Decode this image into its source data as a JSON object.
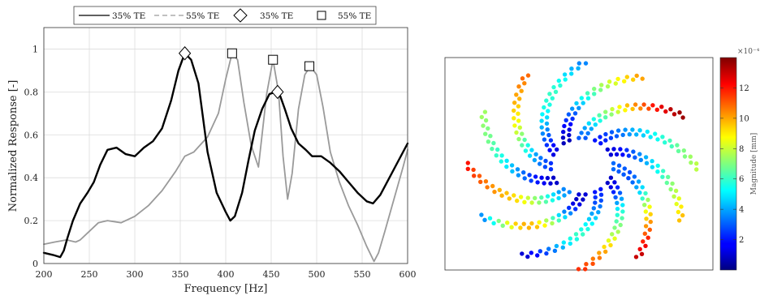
{
  "chart_data": [
    {
      "type": "line",
      "xlabel": "Frequency [Hz]",
      "ylabel": "Normalized Response [-]",
      "xlim": [
        200,
        600
      ],
      "ylim": [
        0,
        1.1
      ],
      "xticks": [
        200,
        250,
        300,
        350,
        400,
        450,
        500,
        550,
        600
      ],
      "yticks": [
        0,
        0.2,
        0.4,
        0.6,
        0.8,
        1
      ],
      "ytick_labels": [
        "0",
        "0.2",
        "0.4",
        "0.6",
        "0.8",
        "1"
      ],
      "grid": true,
      "legend_position": "top-outside",
      "legend": [
        {
          "label": "35% TE",
          "kind": "line-solid",
          "color": "#000000"
        },
        {
          "label": "55% TE",
          "kind": "line-dashed",
          "color": "#9a9a9a"
        },
        {
          "label": "35% TE",
          "kind": "diamond-marker",
          "color": "#000000"
        },
        {
          "label": "55% TE",
          "kind": "square-marker",
          "color": "#000000"
        }
      ],
      "series": [
        {
          "name": "35% TE",
          "color": "#000000",
          "x": [
            200,
            210,
            218,
            222,
            226,
            232,
            240,
            248,
            255,
            262,
            270,
            280,
            290,
            300,
            310,
            320,
            330,
            340,
            348,
            355,
            362,
            370,
            380,
            390,
            400,
            405,
            410,
            418,
            425,
            432,
            440,
            448,
            455,
            460,
            465,
            472,
            480,
            488,
            495,
            505,
            515,
            525,
            535,
            545,
            555,
            562,
            570,
            580,
            590,
            600
          ],
          "y": [
            0.05,
            0.04,
            0.03,
            0.06,
            0.12,
            0.2,
            0.28,
            0.33,
            0.38,
            0.46,
            0.53,
            0.54,
            0.51,
            0.5,
            0.54,
            0.57,
            0.63,
            0.76,
            0.9,
            0.98,
            0.95,
            0.84,
            0.52,
            0.33,
            0.24,
            0.2,
            0.22,
            0.33,
            0.48,
            0.62,
            0.72,
            0.79,
            0.8,
            0.78,
            0.72,
            0.63,
            0.56,
            0.53,
            0.5,
            0.5,
            0.47,
            0.43,
            0.38,
            0.33,
            0.29,
            0.28,
            0.32,
            0.4,
            0.48,
            0.56
          ]
        },
        {
          "name": "55% TE",
          "color": "#9a9a9a",
          "x": [
            200,
            212,
            225,
            235,
            240,
            250,
            260,
            270,
            285,
            300,
            315,
            330,
            345,
            355,
            365,
            380,
            392,
            400,
            407,
            413,
            420,
            428,
            436,
            445,
            452,
            458,
            463,
            468,
            473,
            480,
            487,
            493,
            500,
            507,
            515,
            525,
            535,
            545,
            555,
            563,
            568,
            575,
            585,
            595,
            600
          ],
          "y": [
            0.09,
            0.1,
            0.11,
            0.1,
            0.11,
            0.15,
            0.19,
            0.2,
            0.19,
            0.22,
            0.27,
            0.34,
            0.43,
            0.5,
            0.52,
            0.59,
            0.7,
            0.86,
            0.98,
            0.95,
            0.75,
            0.55,
            0.45,
            0.79,
            0.95,
            0.8,
            0.5,
            0.3,
            0.42,
            0.72,
            0.88,
            0.92,
            0.88,
            0.73,
            0.52,
            0.38,
            0.27,
            0.18,
            0.08,
            0.01,
            0.05,
            0.15,
            0.3,
            0.45,
            0.53
          ]
        }
      ],
      "markers": [
        {
          "shape": "diamond",
          "x": 355,
          "y": 0.98
        },
        {
          "shape": "diamond",
          "x": 457,
          "y": 0.8
        },
        {
          "shape": "square",
          "x": 407,
          "y": 0.98
        },
        {
          "shape": "square",
          "x": 452,
          "y": 0.95
        },
        {
          "shape": "square",
          "x": 492,
          "y": 0.92
        }
      ]
    },
    {
      "type": "scatter",
      "pattern": "spiral",
      "arm_count": 12,
      "colorbar": {
        "label": "Magnitude [mm]",
        "exponent_label": "×10⁻⁴",
        "range": [
          0,
          14
        ],
        "ticks": [
          2,
          4,
          6,
          8,
          10,
          12
        ],
        "tick_labels": [
          "2",
          "4",
          "6",
          "8",
          "10",
          "12"
        ],
        "colormap": "jet"
      },
      "arm_magnitudes": [
        [
          3.2,
          3.0,
          3.0,
          2.8,
          3.2,
          4.0,
          4.8,
          6.0,
          7.4,
          8.6,
          9.4,
          10.2,
          11.0,
          11.8,
          12.4,
          13.0
        ],
        [
          1.0,
          1.4,
          2.2,
          3.0,
          4.0,
          5.0,
          5.8,
          6.4,
          7.0,
          7.6,
          8.4,
          9.2,
          10.0,
          10.6,
          11.2,
          11.6
        ],
        [
          2.0,
          2.4,
          2.8,
          3.4,
          4.0,
          4.6,
          5.2,
          5.6,
          6.0,
          5.6,
          5.0,
          4.2,
          3.4,
          2.6,
          1.8,
          1.2
        ],
        [
          1.2,
          1.0,
          1.4,
          2.4,
          3.6,
          4.8,
          6.2,
          7.6,
          8.8,
          9.6,
          9.8,
          9.4,
          8.4,
          7.0,
          5.4,
          3.8
        ],
        [
          3.6,
          4.0,
          4.8,
          5.6,
          6.4,
          7.2,
          8.0,
          8.6,
          9.2,
          9.6,
          9.8,
          10.2,
          10.6,
          11.0,
          11.4,
          12.0
        ],
        [
          1.0,
          1.2,
          1.6,
          2.0,
          2.6,
          3.2,
          3.8,
          4.4,
          5.0,
          5.6,
          6.0,
          6.4,
          6.8,
          7.0,
          7.2,
          7.4
        ],
        [
          2.4,
          2.8,
          3.4,
          4.0,
          4.8,
          5.6,
          6.4,
          7.2,
          8.0,
          8.6,
          9.0,
          9.4,
          9.8,
          10.0,
          10.4,
          10.8
        ],
        [
          1.4,
          1.8,
          2.4,
          3.0,
          3.6,
          4.2,
          4.8,
          5.2,
          5.6,
          5.8,
          6.0,
          5.8,
          5.4,
          4.8,
          4.2,
          3.6
        ],
        [
          0.8,
          1.0,
          1.4,
          1.8,
          2.4,
          3.0,
          3.8,
          4.6,
          5.4,
          6.2,
          7.0,
          7.6,
          8.2,
          8.8,
          9.4,
          10.0
        ],
        [
          3.0,
          3.4,
          4.0,
          4.8,
          5.6,
          6.4,
          7.2,
          8.0,
          8.8,
          9.6,
          10.4,
          11.2,
          12.0,
          12.6,
          13.2,
          13.6
        ],
        [
          2.0,
          2.2,
          2.6,
          3.0,
          3.4,
          3.8,
          4.2,
          4.6,
          5.0,
          5.4,
          5.8,
          6.2,
          6.6,
          7.0,
          7.4,
          7.8
        ],
        [
          1.2,
          1.4,
          1.8,
          2.4,
          3.0,
          3.6,
          4.2,
          4.8,
          5.4,
          6.0,
          6.6,
          7.2,
          7.8,
          8.4,
          9.0,
          9.6
        ]
      ]
    }
  ]
}
